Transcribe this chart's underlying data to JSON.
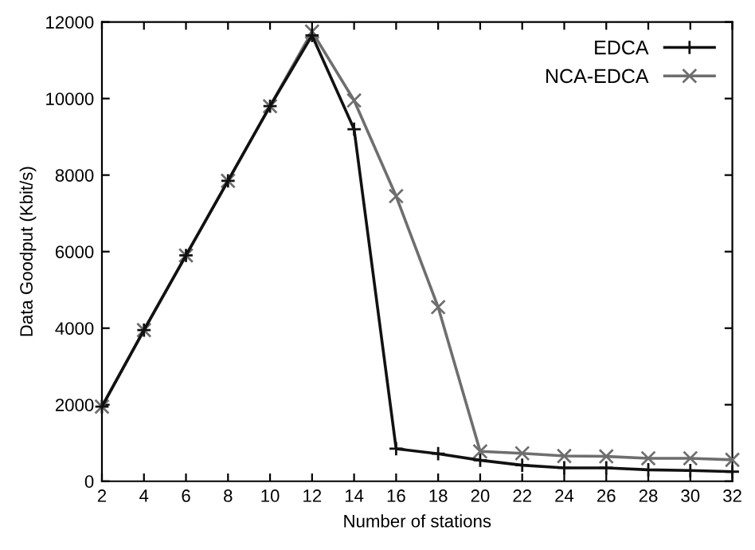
{
  "chart_data": {
    "type": "line",
    "xlabel": "Number of stations",
    "ylabel": "Data Goodput (Kbit/s)",
    "x": [
      2,
      4,
      6,
      8,
      10,
      12,
      14,
      16,
      18,
      20,
      22,
      24,
      26,
      28,
      30,
      32
    ],
    "series": [
      {
        "name": "EDCA",
        "color": "#111111",
        "marker": "plus",
        "values": [
          1950,
          3950,
          5900,
          7850,
          9800,
          11650,
          9200,
          850,
          720,
          550,
          420,
          350,
          350,
          300,
          280,
          250
        ]
      },
      {
        "name": "NCA-EDCA",
        "color": "#6e6e6e",
        "marker": "cross",
        "values": [
          1950,
          3950,
          5900,
          7850,
          9800,
          11750,
          9950,
          7450,
          4550,
          780,
          730,
          660,
          650,
          600,
          600,
          560
        ]
      }
    ],
    "xlim": [
      2,
      32
    ],
    "xticks": [
      2,
      4,
      6,
      8,
      10,
      12,
      14,
      16,
      18,
      20,
      22,
      24,
      26,
      28,
      30,
      32
    ],
    "ylim": [
      0,
      12000
    ],
    "yticks": [
      0,
      2000,
      4000,
      6000,
      8000,
      10000,
      12000
    ],
    "grid": false,
    "legend": "top right",
    "line_style": "solid"
  }
}
